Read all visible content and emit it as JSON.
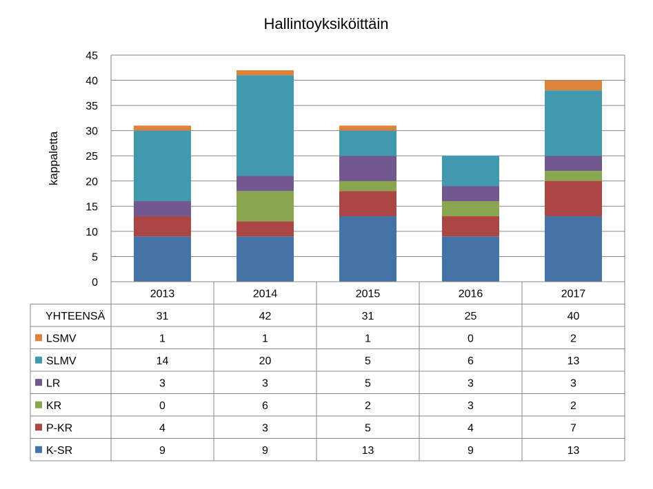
{
  "chart_data": {
    "type": "bar",
    "stacked": true,
    "title": "Hallintoyksiköittäin",
    "ylabel": "kappaletta",
    "xlabel": "",
    "ylim": [
      0,
      45
    ],
    "yticks": [
      0,
      5,
      10,
      15,
      20,
      25,
      30,
      35,
      40,
      45
    ],
    "grid": true,
    "categories": [
      "2013",
      "2014",
      "2015",
      "2016",
      "2017"
    ],
    "series": [
      {
        "name": "K-SR",
        "color": "#4572A7",
        "values": [
          9,
          9,
          13,
          9,
          13
        ]
      },
      {
        "name": "P-KR",
        "color": "#AA4643",
        "values": [
          4,
          3,
          5,
          4,
          7
        ]
      },
      {
        "name": "KR",
        "color": "#89A54E",
        "values": [
          0,
          6,
          2,
          3,
          2
        ]
      },
      {
        "name": "LR",
        "color": "#71588F",
        "values": [
          3,
          3,
          5,
          3,
          3
        ]
      },
      {
        "name": "SLMV",
        "color": "#4198AF",
        "values": [
          14,
          20,
          5,
          6,
          13
        ]
      },
      {
        "name": "LSMV",
        "color": "#DB843D",
        "values": [
          1,
          1,
          1,
          0,
          2
        ]
      }
    ],
    "table": {
      "total_label": "YHTEENSÄ",
      "totals": [
        31,
        42,
        31,
        25,
        40
      ],
      "row_order": [
        "LSMV",
        "SLMV",
        "LR",
        "KR",
        "P-KR",
        "K-SR"
      ]
    }
  }
}
